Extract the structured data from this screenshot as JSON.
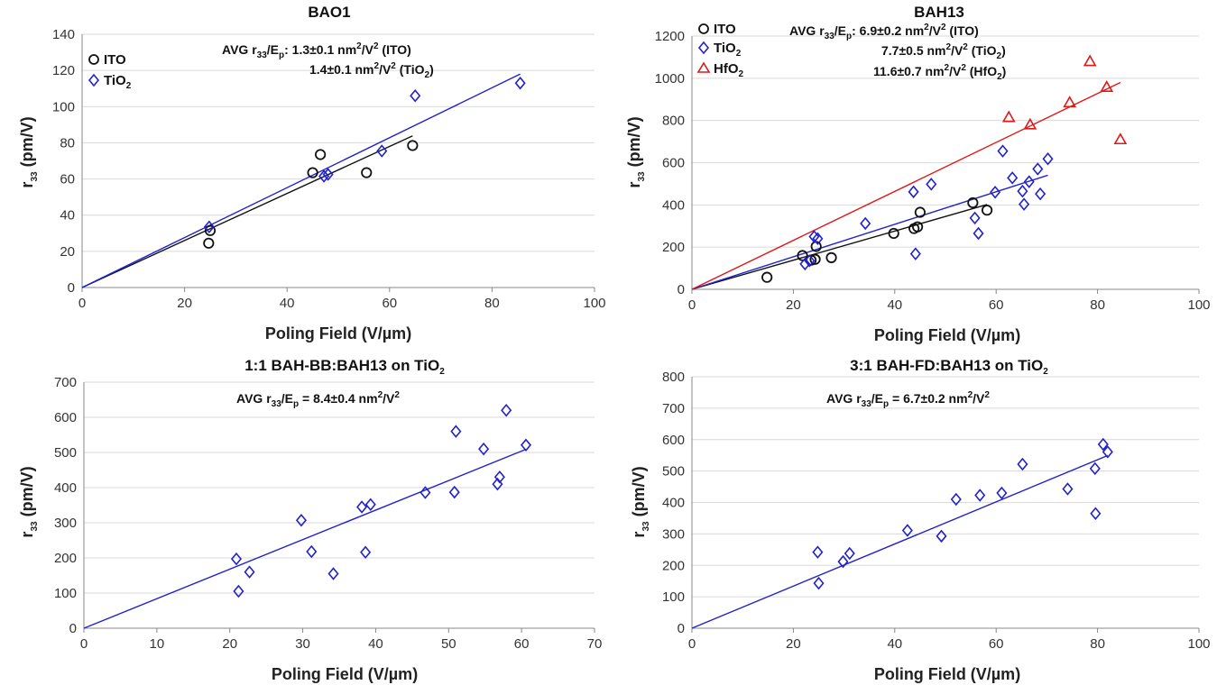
{
  "figure": {
    "colors": {
      "ITO": "#111111",
      "TiO2": "#2222cc",
      "HfO2": "#e01818",
      "grid": "#d9d9d9",
      "axis": "#888888"
    }
  },
  "chart_data": [
    {
      "type": "scatter",
      "title": "BAO1",
      "xlabel": "Poling Field (V/µm)",
      "ylabel_main": "r",
      "ylabel_sub": "33",
      "ylabel_rest": " (pm/V)",
      "xlim": [
        0,
        100
      ],
      "xticks": [
        0,
        20,
        40,
        60,
        80,
        100
      ],
      "ylim": [
        0,
        140
      ],
      "yticks": [
        0,
        20,
        40,
        60,
        80,
        100,
        120,
        140
      ],
      "legend": "top-left",
      "series": [
        {
          "key": "ITO",
          "name": "ITO",
          "name_sub": "",
          "marker": "circle",
          "color": "#111111",
          "points": [
            [
              24.7,
              24.5
            ],
            [
              25,
              31.5
            ],
            [
              45,
              63.5
            ],
            [
              46.5,
              73.5
            ],
            [
              55.5,
              63.5
            ],
            [
              64.5,
              78.5
            ]
          ],
          "fit_slope": 1.3
        },
        {
          "key": "TiO2",
          "name": "TiO",
          "name_sub": "2",
          "marker": "diamond",
          "color": "#2222cc",
          "points": [
            [
              24.8,
              33.5
            ],
            [
              47.2,
              61.5
            ],
            [
              48,
              62.5
            ],
            [
              58.5,
              75.5
            ],
            [
              65,
              106
            ],
            [
              85.5,
              113
            ]
          ],
          "fit_slope": 1.38
        }
      ],
      "annotations": [
        {
          "parts": [
            "AVG r",
            "33",
            "/E",
            "p",
            ": 1.3±0.1 nm",
            "2",
            "/V",
            "2",
            " (ITO)"
          ]
        },
        {
          "parts": [
            "1.4±0.1 nm",
            "2",
            "/V",
            "2",
            " (TiO",
            "2",
            ")"
          ]
        }
      ]
    },
    {
      "type": "scatter",
      "title": "BAH13",
      "xlabel": "Poling Field (V/µm)",
      "ylabel_main": "r",
      "ylabel_sub": "33",
      "ylabel_rest": " (pm/V)",
      "xlim": [
        0,
        100
      ],
      "xticks": [
        0,
        20,
        40,
        60,
        80,
        100
      ],
      "ylim": [
        0,
        1200
      ],
      "yticks": [
        0,
        200,
        400,
        600,
        800,
        1000,
        1200
      ],
      "legend": "top-left",
      "series": [
        {
          "key": "ITO",
          "name": "ITO",
          "name_sub": "",
          "marker": "circle",
          "color": "#111111",
          "points": [
            [
              14.8,
              57
            ],
            [
              21.8,
              160
            ],
            [
              23.5,
              138
            ],
            [
              24.3,
              142
            ],
            [
              24.5,
              203
            ],
            [
              27.5,
              150
            ],
            [
              39.8,
              265
            ],
            [
              43.8,
              288
            ],
            [
              44.5,
              296
            ],
            [
              45,
              365
            ],
            [
              55.4,
              410
            ],
            [
              58.2,
              375
            ]
          ],
          "fit_slope": 6.9
        },
        {
          "key": "TiO2",
          "name": "TiO",
          "name_sub": "2",
          "marker": "diamond",
          "color": "#2222cc",
          "points": [
            [
              22.3,
              120
            ],
            [
              23.2,
              135
            ],
            [
              24.1,
              250
            ],
            [
              24.8,
              240
            ],
            [
              34.2,
              312
            ],
            [
              43.7,
              462
            ],
            [
              44.1,
              168
            ],
            [
              47.2,
              498
            ],
            [
              55.8,
              338
            ],
            [
              56.5,
              265
            ],
            [
              59.8,
              460
            ],
            [
              61.3,
              655
            ],
            [
              63.2,
              528
            ],
            [
              65.2,
              465
            ],
            [
              65.5,
              403
            ],
            [
              66.5,
              510
            ],
            [
              68.2,
              570
            ],
            [
              68.7,
              452
            ],
            [
              70.2,
              618
            ]
          ],
          "fit_slope": 7.7
        },
        {
          "key": "HfO2",
          "name": "HfO",
          "name_sub": "2",
          "marker": "triangle",
          "color": "#e01818",
          "points": [
            [
              62.5,
              815
            ],
            [
              66.7,
              780
            ],
            [
              74.5,
              885
            ],
            [
              78.5,
              1080
            ],
            [
              81.8,
              958
            ],
            [
              84.5,
              710
            ]
          ],
          "fit_slope": 11.6
        }
      ],
      "annotations": [
        {
          "parts": [
            "AVG r",
            "33",
            "/E",
            "p",
            ": 6.9±0.2 nm",
            "2",
            "/V",
            "2",
            " (ITO)"
          ]
        },
        {
          "parts": [
            "7.7±0.5 nm",
            "2",
            "/V",
            "2",
            " (TiO",
            "2",
            ")"
          ]
        },
        {
          "parts": [
            "11.6±0.7 nm",
            "2",
            "/V",
            "2",
            " (HfO",
            "2",
            ")"
          ]
        }
      ]
    },
    {
      "type": "scatter",
      "title": "1:1 BAH-BB:BAH13 on TiO",
      "title_sub": "2",
      "xlabel": "Poling Field (V/µm)",
      "ylabel_main": "r",
      "ylabel_sub": "33",
      "ylabel_rest": " (pm/V)",
      "xlim": [
        0,
        70
      ],
      "xticks": [
        0,
        10,
        20,
        30,
        40,
        50,
        60,
        70
      ],
      "ylim": [
        0,
        700
      ],
      "yticks": [
        0,
        100,
        200,
        300,
        400,
        500,
        600,
        700
      ],
      "legend": "none",
      "series": [
        {
          "key": "TiO2",
          "name": "",
          "name_sub": "",
          "marker": "diamond",
          "color": "#2222cc",
          "points": [
            [
              20.9,
              197
            ],
            [
              21.2,
              105
            ],
            [
              22.7,
              160
            ],
            [
              29.8,
              307
            ],
            [
              31.2,
              218
            ],
            [
              34.2,
              155
            ],
            [
              38.1,
              345
            ],
            [
              38.6,
              216
            ],
            [
              39.3,
              352
            ],
            [
              46.8,
              386
            ],
            [
              50.8,
              387
            ],
            [
              51,
              560
            ],
            [
              54.8,
              510
            ],
            [
              56.7,
              410
            ],
            [
              57,
              430
            ],
            [
              57.9,
              620
            ],
            [
              60.6,
              521
            ]
          ],
          "fit_slope": 8.4
        }
      ],
      "annotations": [
        {
          "parts": [
            "AVG r",
            "33",
            "/E",
            "p",
            " = 8.4±0.4 nm",
            "2",
            "/V",
            "2",
            "",
            "",
            ""
          ]
        }
      ]
    },
    {
      "type": "scatter",
      "title": "3:1 BAH-FD:BAH13 on TiO",
      "title_sub": "2",
      "xlabel": "Poling Field (V/µm)",
      "ylabel_main": "r",
      "ylabel_sub": "33",
      "ylabel_rest": " (pm/V)",
      "xlim": [
        0,
        100
      ],
      "xticks": [
        0,
        20,
        40,
        60,
        80,
        100
      ],
      "ylim": [
        0,
        800
      ],
      "yticks": [
        0,
        100,
        200,
        300,
        400,
        500,
        600,
        700,
        800
      ],
      "legend": "none",
      "series": [
        {
          "key": "TiO2",
          "name": "",
          "name_sub": "",
          "marker": "diamond",
          "color": "#2222cc",
          "points": [
            [
              24.8,
              242
            ],
            [
              25,
              143
            ],
            [
              29.8,
              212
            ],
            [
              31.1,
              238
            ],
            [
              42.5,
              311
            ],
            [
              49.2,
              293
            ],
            [
              52.1,
              410
            ],
            [
              56.8,
              423
            ],
            [
              61.1,
              430
            ],
            [
              65.2,
              522
            ],
            [
              74.1,
              443
            ],
            [
              79.5,
              508
            ],
            [
              79.6,
              365
            ],
            [
              81.1,
              585
            ],
            [
              82,
              561
            ]
          ],
          "fit_slope": 6.7
        }
      ],
      "annotations": [
        {
          "parts": [
            "AVG r",
            "33",
            "/E",
            "p",
            " = 6.7±0.2 nm",
            "2",
            "/V",
            "2",
            "",
            "",
            ""
          ]
        }
      ]
    }
  ]
}
